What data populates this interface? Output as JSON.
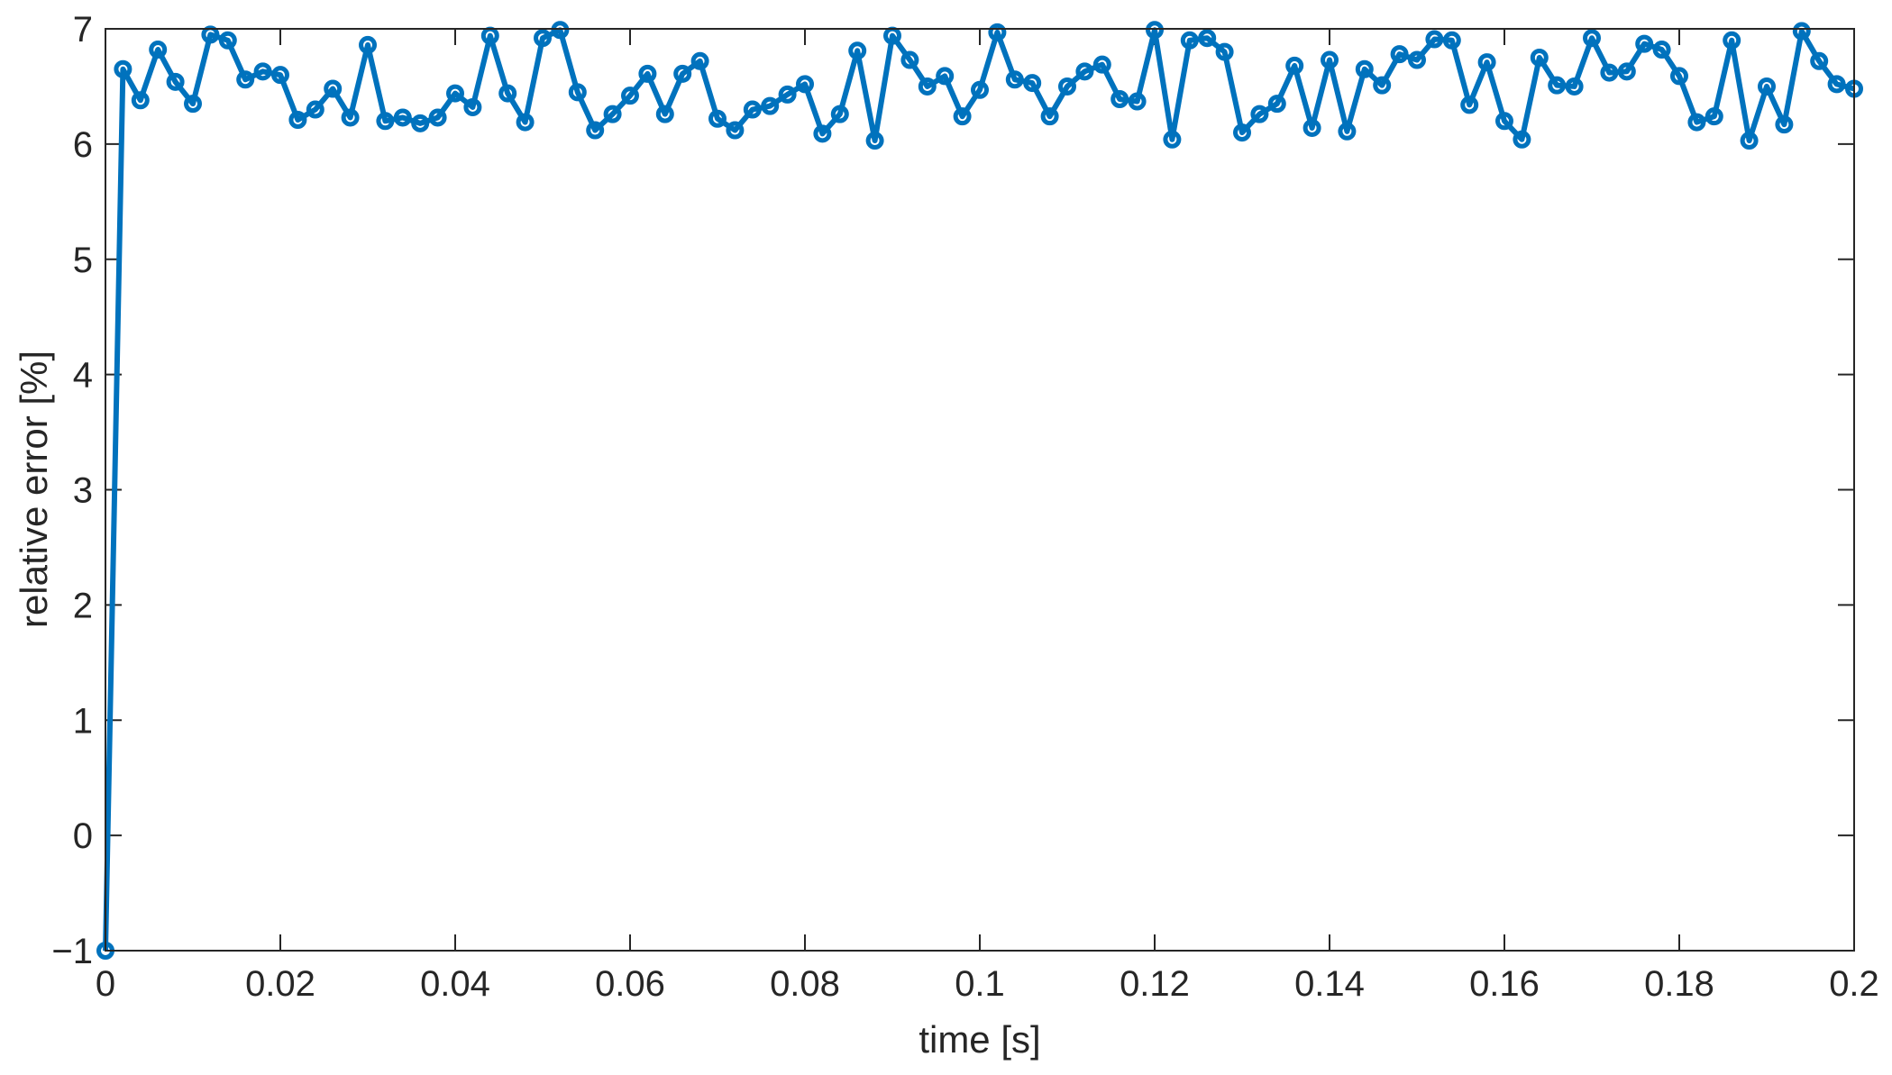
{
  "chart_data": {
    "type": "line",
    "xlabel": "time [s]",
    "ylabel": "relative error [%]",
    "xlim": [
      0,
      0.2
    ],
    "ylim": [
      -1,
      7
    ],
    "grid": false,
    "xticks": [
      0,
      0.02,
      0.04,
      0.06,
      0.08,
      0.1,
      0.12,
      0.14,
      0.16,
      0.18,
      0.2
    ],
    "xtick_labels": [
      "0",
      "0.02",
      "0.04",
      "0.06",
      "0.08",
      "0.1",
      "0.12",
      "0.14",
      "0.16",
      "0.18",
      "0.2"
    ],
    "yticks": [
      -1,
      0,
      1,
      2,
      3,
      4,
      5,
      6,
      7
    ],
    "ytick_labels": [
      "−1",
      "0",
      "1",
      "2",
      "3",
      "4",
      "5",
      "6",
      "7"
    ],
    "line_color": "#0072BD",
    "marker": "circle",
    "series": [
      {
        "x": [
          0,
          0.002,
          0.004,
          0.006,
          0.008,
          0.01,
          0.012,
          0.014,
          0.016,
          0.018,
          0.02,
          0.022,
          0.024,
          0.026,
          0.028,
          0.03,
          0.032,
          0.034,
          0.036,
          0.038,
          0.04,
          0.042,
          0.044,
          0.046,
          0.048,
          0.05,
          0.052,
          0.054,
          0.056,
          0.058,
          0.06,
          0.062,
          0.064,
          0.066,
          0.068,
          0.07,
          0.072,
          0.074,
          0.076,
          0.078,
          0.08,
          0.082,
          0.084,
          0.086,
          0.088,
          0.09,
          0.092,
          0.094,
          0.096,
          0.098,
          0.1,
          0.102,
          0.104,
          0.106,
          0.108,
          0.11,
          0.112,
          0.114,
          0.116,
          0.118,
          0.12,
          0.122,
          0.124,
          0.126,
          0.128,
          0.13,
          0.132,
          0.134,
          0.136,
          0.138,
          0.14,
          0.142,
          0.144,
          0.146,
          0.148,
          0.15,
          0.152,
          0.154,
          0.156,
          0.158,
          0.16,
          0.162,
          0.164,
          0.166,
          0.168,
          0.17,
          0.172,
          0.174,
          0.176,
          0.178,
          0.18,
          0.182,
          0.184,
          0.186,
          0.188,
          0.19,
          0.192,
          0.194,
          0.196,
          0.198,
          0.2
        ],
        "y": [
          -1.0,
          6.65,
          6.38,
          6.82,
          6.54,
          6.35,
          6.95,
          6.9,
          6.56,
          6.63,
          6.6,
          6.21,
          6.3,
          6.48,
          6.23,
          6.86,
          6.2,
          6.23,
          6.18,
          6.23,
          6.44,
          6.32,
          6.94,
          6.44,
          6.19,
          6.92,
          6.99,
          6.45,
          6.12,
          6.26,
          6.42,
          6.61,
          6.26,
          6.61,
          6.72,
          6.22,
          6.12,
          6.3,
          6.33,
          6.43,
          6.52,
          6.09,
          6.26,
          6.81,
          6.03,
          6.94,
          6.73,
          6.5,
          6.59,
          6.24,
          6.47,
          6.97,
          6.56,
          6.53,
          6.24,
          6.5,
          6.63,
          6.69,
          6.39,
          6.37,
          6.99,
          6.04,
          6.9,
          6.92,
          6.8,
          6.1,
          6.26,
          6.35,
          6.68,
          6.14,
          6.73,
          6.11,
          6.65,
          6.51,
          6.78,
          6.73,
          6.91,
          6.9,
          6.34,
          6.71,
          6.2,
          6.04,
          6.75,
          6.51,
          6.5,
          6.92,
          6.62,
          6.63,
          6.87,
          6.82,
          6.59,
          6.19,
          6.24,
          6.9,
          6.03,
          6.5,
          6.17,
          6.98,
          6.72,
          6.52,
          6.48
        ]
      }
    ]
  }
}
